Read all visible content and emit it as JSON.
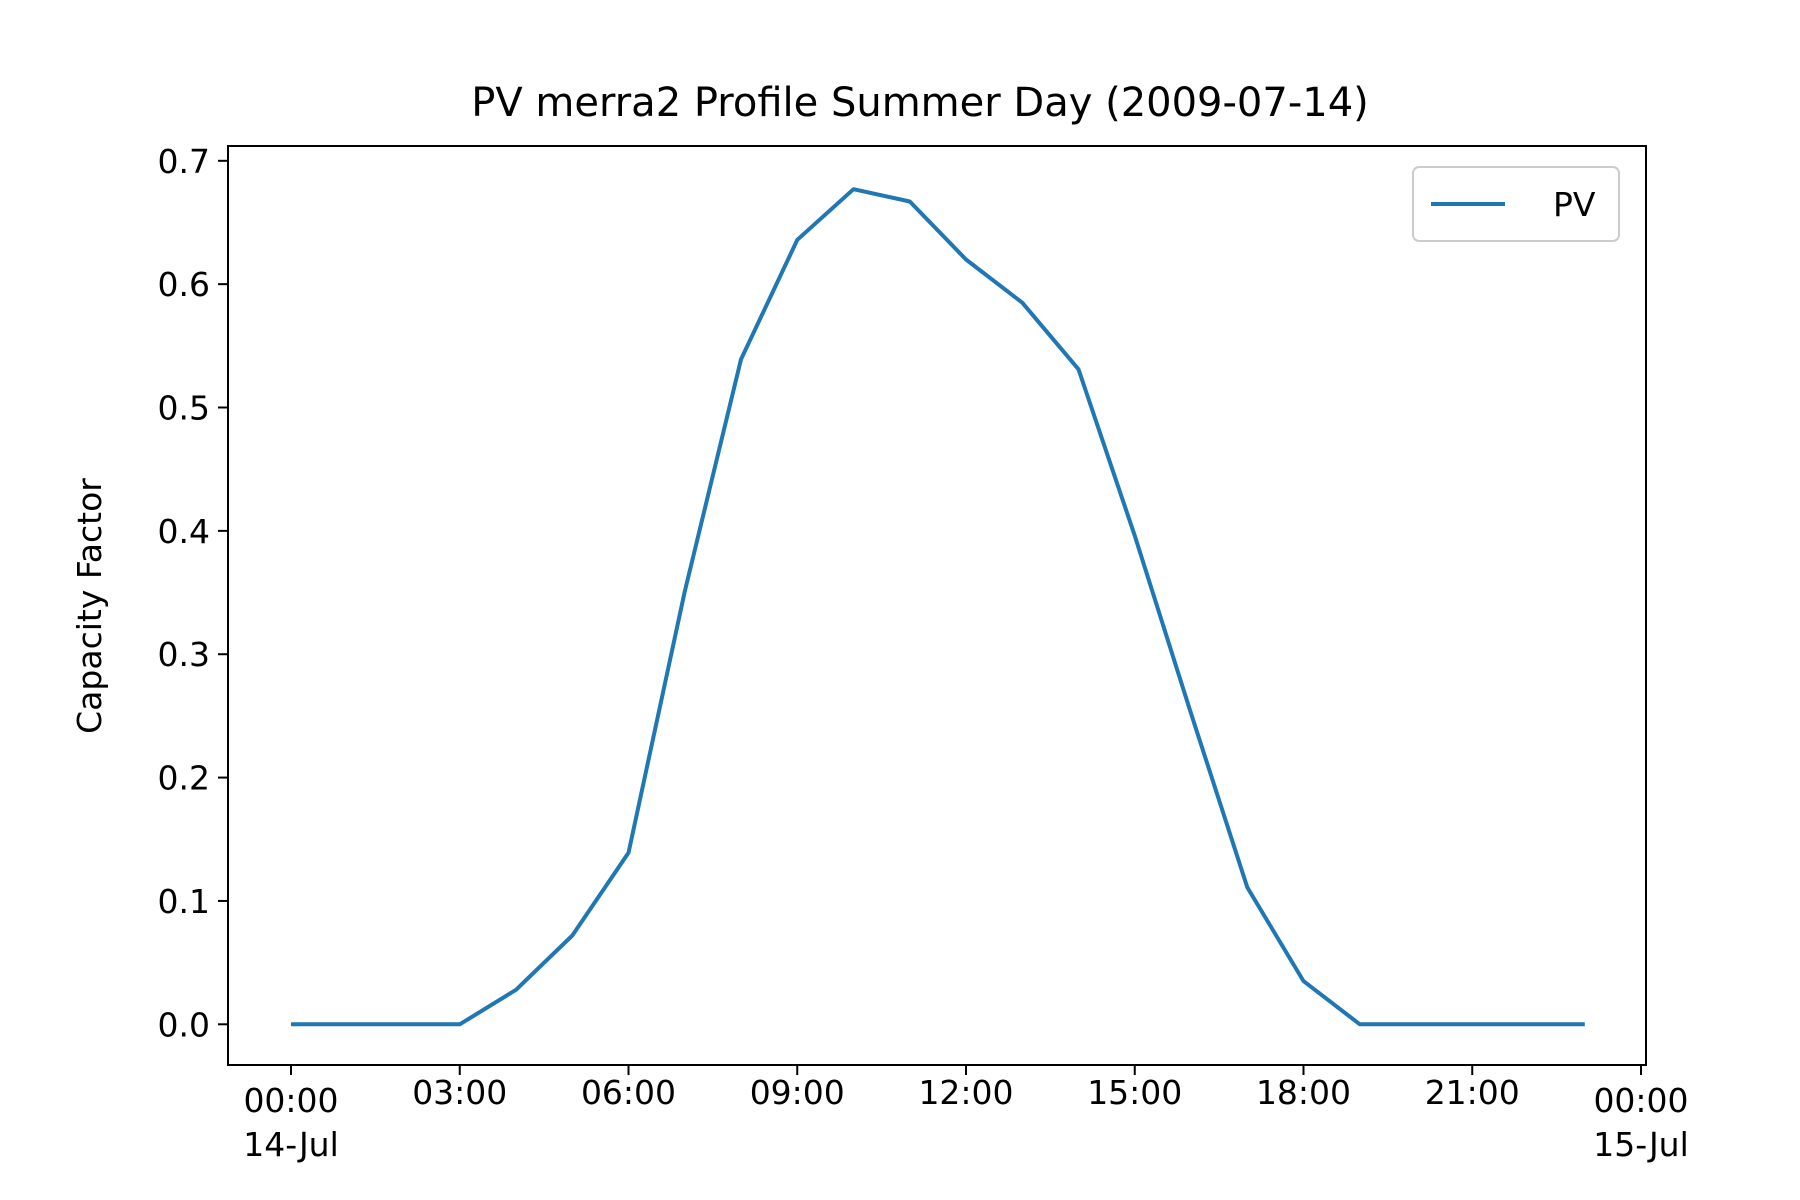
{
  "chart_data": {
    "type": "line",
    "title": "PV merra2 Profile Summer Day (2009-07-14)",
    "xlabel": "",
    "ylabel": "Capacity Factor",
    "x_tick_labels": [
      {
        "time": "00:00",
        "date": "14-Jul"
      },
      {
        "time": "03:00",
        "date": ""
      },
      {
        "time": "06:00",
        "date": ""
      },
      {
        "time": "09:00",
        "date": ""
      },
      {
        "time": "12:00",
        "date": ""
      },
      {
        "time": "15:00",
        "date": ""
      },
      {
        "time": "18:00",
        "date": ""
      },
      {
        "time": "21:00",
        "date": ""
      },
      {
        "time": "00:00",
        "date": "15-Jul"
      }
    ],
    "y_tick_labels": [
      "0.0",
      "0.1",
      "0.2",
      "0.3",
      "0.4",
      "0.5",
      "0.6",
      "0.7"
    ],
    "xlim": [
      "2009-07-14 00:00",
      "2009-07-15 00:00"
    ],
    "ylim": [
      -0.033,
      0.712
    ],
    "x": [
      "00:00",
      "01:00",
      "02:00",
      "03:00",
      "04:00",
      "05:00",
      "06:00",
      "07:00",
      "08:00",
      "09:00",
      "10:00",
      "11:00",
      "12:00",
      "13:00",
      "14:00",
      "15:00",
      "16:00",
      "17:00",
      "18:00",
      "19:00",
      "20:00",
      "21:00",
      "22:00",
      "23:00"
    ],
    "series": [
      {
        "name": "PV",
        "color": "#1f77b4",
        "values": [
          0.0,
          0.0,
          0.0,
          0.0,
          0.028,
          0.072,
          0.139,
          0.351,
          0.539,
          0.636,
          0.677,
          0.667,
          0.62,
          0.585,
          0.531,
          0.396,
          0.252,
          0.111,
          0.035,
          0.0,
          0.0,
          0.0,
          0.0,
          0.0
        ]
      }
    ],
    "legend": {
      "position": "top-right",
      "entries": [
        "PV"
      ]
    },
    "grid": false
  }
}
